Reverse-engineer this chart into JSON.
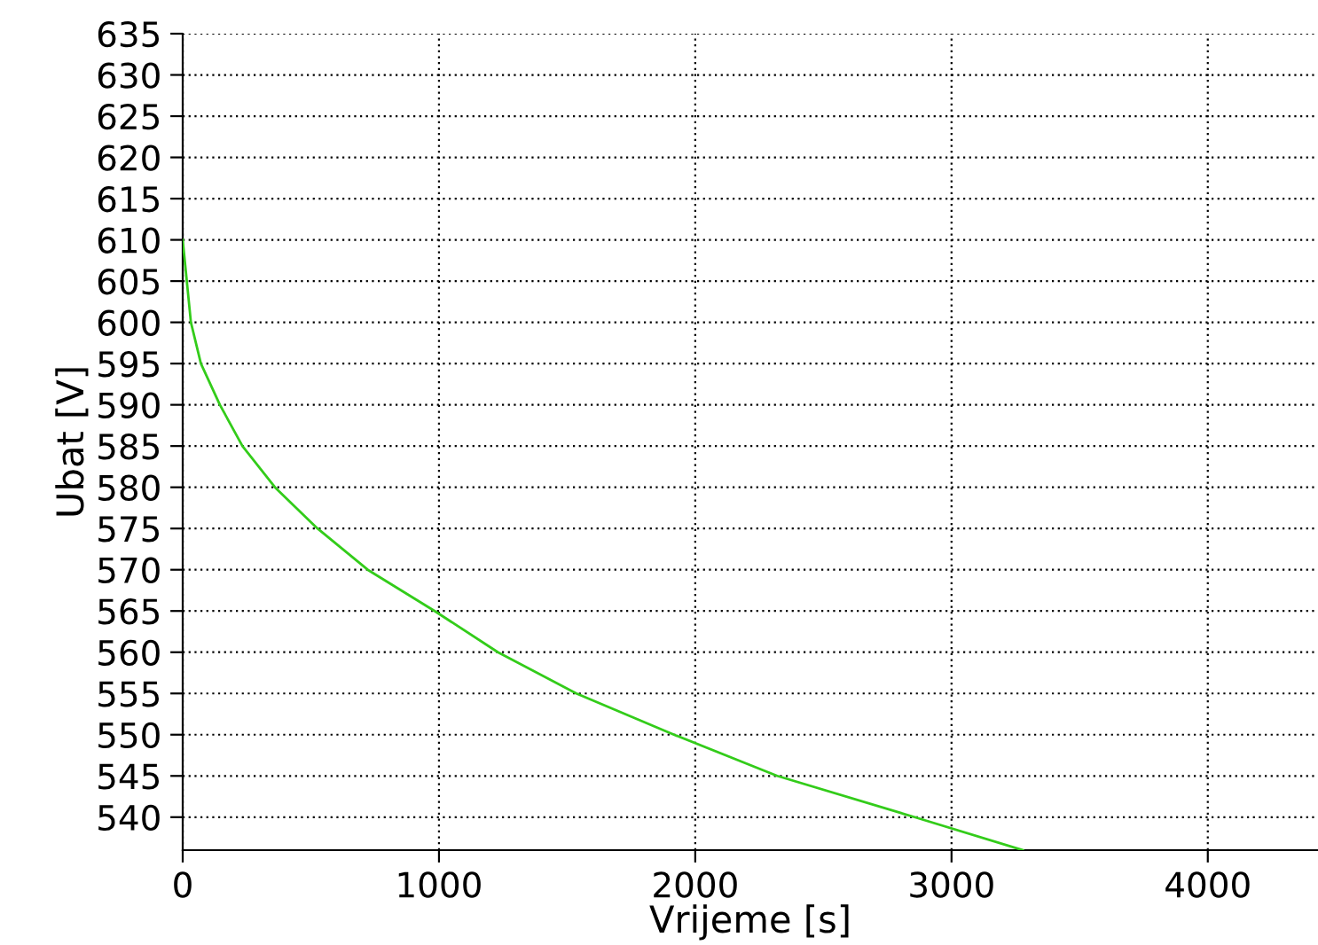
{
  "chart_data": {
    "type": "line",
    "xlabel": "Vrijeme [s]",
    "ylabel": "Ubat [V]",
    "x": [
      0,
      16,
      32,
      71,
      145,
      233,
      360,
      526,
      722,
      983,
      1230,
      1536,
      1917,
      2320,
      2856,
      3278
    ],
    "series": [
      {
        "color": "#33cc1a",
        "values": [
          610,
          605,
          600,
          595,
          590,
          585,
          580,
          575,
          570,
          565,
          560,
          555,
          550,
          545,
          540,
          536
        ]
      }
    ],
    "xlim": [
      0,
      4430
    ],
    "ylim": [
      536,
      635
    ],
    "xticks": [
      0,
      1000,
      2000,
      3000,
      4000
    ],
    "yticks": [
      540,
      545,
      550,
      555,
      560,
      565,
      570,
      575,
      580,
      585,
      590,
      595,
      600,
      605,
      610,
      615,
      620,
      625,
      630,
      635
    ],
    "grid": true,
    "line_style": "solid",
    "marker": "none"
  }
}
